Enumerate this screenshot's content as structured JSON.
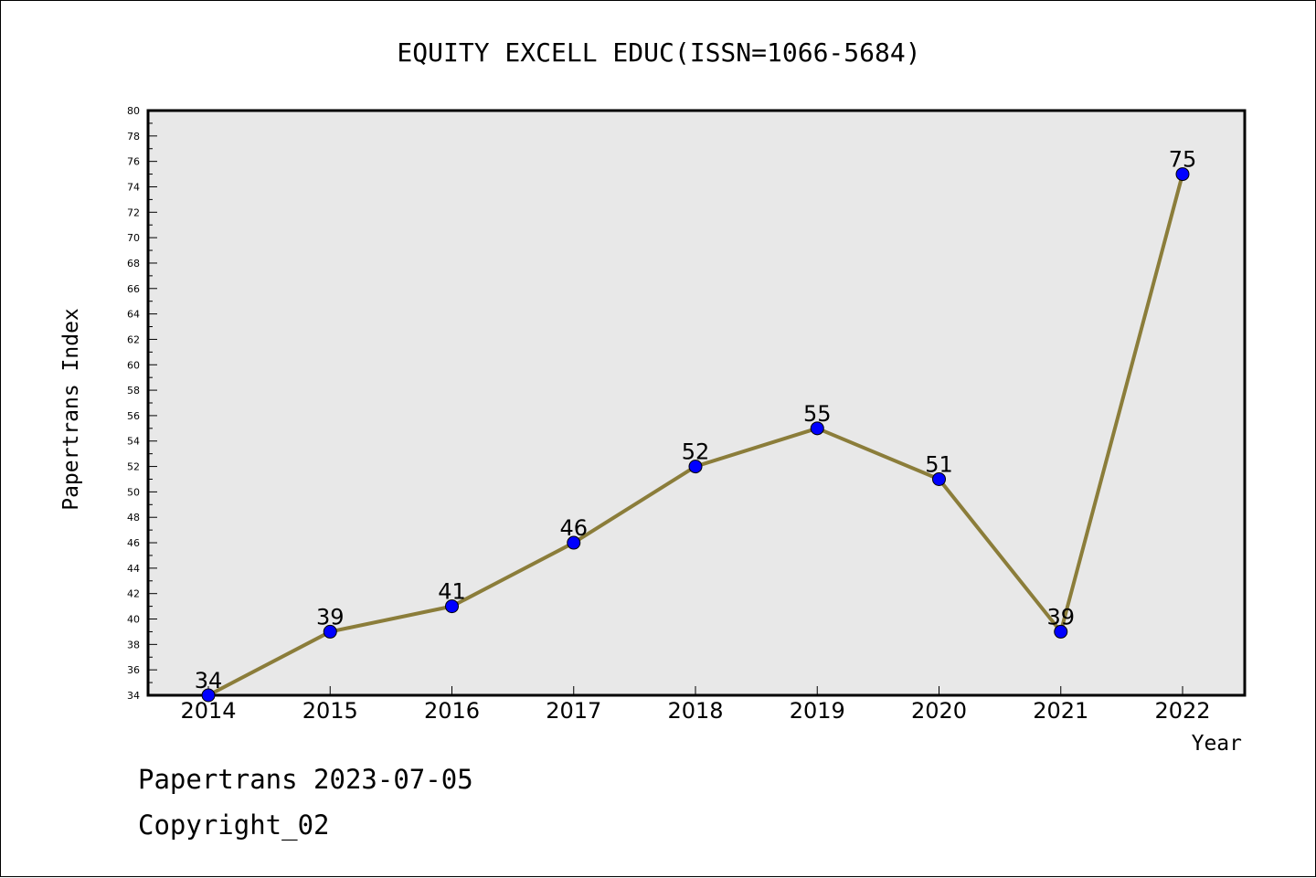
{
  "chart_data": {
    "type": "line",
    "title": "EQUITY EXCELL EDUC(ISSN=1066-5684)",
    "xlabel": "Year",
    "ylabel": "Papertrans Index",
    "categories": [
      "2014",
      "2015",
      "2016",
      "2017",
      "2018",
      "2019",
      "2020",
      "2021",
      "2022"
    ],
    "series": [
      {
        "values": [
          34,
          39,
          41,
          46,
          52,
          55,
          51,
          39,
          75
        ]
      }
    ],
    "data_labels": [
      "34",
      "39",
      "41",
      "46",
      "52",
      "55",
      "51",
      "39",
      "75"
    ],
    "ylim": [
      34,
      80
    ],
    "yticks": [
      "34",
      "36",
      "38",
      "40",
      "42",
      "44",
      "46",
      "48",
      "50",
      "52",
      "54",
      "56",
      "58",
      "60",
      "62",
      "64",
      "66",
      "68",
      "70",
      "72",
      "74",
      "76",
      "78",
      "80"
    ],
    "grid": false,
    "legend": "none",
    "colors": {
      "line": "#8B7D3A",
      "marker": "#0000FF",
      "plot_background": "#E8E8E8"
    }
  },
  "footer": {
    "line1": "Papertrans 2023-07-05",
    "line2": "Copyright_02"
  }
}
